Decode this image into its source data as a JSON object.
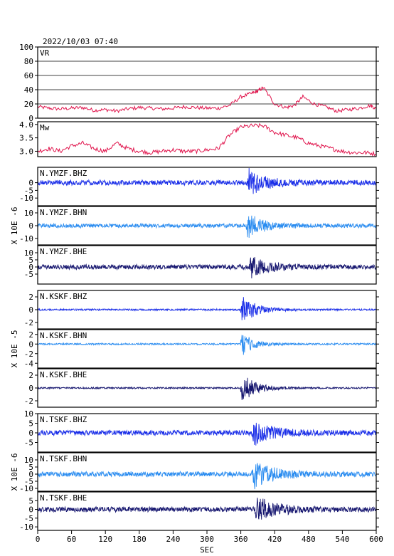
{
  "chart_data": {
    "type": "line",
    "title": "2022/10/03 07:40",
    "xlabel": "SEC",
    "xlim": [
      0,
      600
    ],
    "xticks": [
      "0",
      "60",
      "120",
      "180",
      "240",
      "300",
      "360",
      "420",
      "480",
      "540",
      "600"
    ],
    "colors": {
      "vr": "#e0144c",
      "bhz": "#1a2ee8",
      "bhn": "#2a8cf0",
      "bhe": "#14146e",
      "frame": "#000000",
      "grid": "#000000"
    },
    "panels": [
      {
        "label": "VR",
        "ylim": [
          0,
          100
        ],
        "yticks": [
          "0",
          "20",
          "40",
          "60",
          "80",
          "100"
        ],
        "grid": true,
        "series": {
          "x": [
            0,
            20,
            40,
            60,
            80,
            100,
            120,
            140,
            160,
            180,
            200,
            220,
            240,
            260,
            280,
            300,
            320,
            340,
            360,
            380,
            390,
            400,
            420,
            440,
            455,
            470,
            490,
            510,
            530,
            550,
            570,
            590,
            600
          ],
          "y": [
            16,
            14,
            13,
            14,
            15,
            11,
            12,
            10,
            13,
            15,
            14,
            13,
            14,
            16,
            15,
            14,
            14,
            18,
            30,
            35,
            38,
            43,
            20,
            15,
            18,
            30,
            20,
            16,
            10,
            12,
            14,
            18,
            13
          ]
        }
      },
      {
        "label": "Mw",
        "ylim": [
          2.8,
          4.1
        ],
        "yticks": [
          "3.0",
          "3.5",
          "4.0"
        ],
        "grid": false,
        "series": {
          "x": [
            0,
            20,
            40,
            60,
            80,
            100,
            120,
            140,
            160,
            180,
            200,
            220,
            240,
            260,
            280,
            300,
            320,
            340,
            360,
            380,
            400,
            420,
            440,
            460,
            480,
            500,
            520,
            540,
            560,
            580,
            600
          ],
          "y": [
            3.0,
            3.1,
            3.0,
            3.2,
            3.3,
            3.1,
            3.0,
            3.3,
            3.1,
            3.0,
            2.95,
            3.0,
            3.05,
            3.0,
            3.0,
            3.05,
            3.1,
            3.6,
            3.9,
            3.95,
            3.95,
            3.7,
            3.6,
            3.5,
            3.3,
            3.2,
            3.1,
            3.0,
            2.95,
            2.95,
            2.9
          ]
        }
      },
      {
        "label": "N.YMZF.BHZ",
        "ylim": [
          -15,
          10
        ],
        "yticks": [
          "-10",
          "-5",
          "0"
        ],
        "color": "bhz",
        "onset": 372,
        "duration": 90,
        "peak": 0.92,
        "noise": 0.15
      },
      {
        "label": "N.YMZF.BHN",
        "ylim": [
          -15,
          15
        ],
        "yticks": [
          "-10",
          "0",
          "10"
        ],
        "color": "bhn",
        "onset": 370,
        "duration": 80,
        "peak": 0.85,
        "noise": 0.12
      },
      {
        "label": "N.YMZF.BHE",
        "ylim": [
          -12,
          15
        ],
        "yticks": [
          "-5",
          "0",
          "5",
          "10"
        ],
        "color": "bhe",
        "onset": 375,
        "duration": 80,
        "peak": 0.95,
        "noise": 0.14
      },
      {
        "label": "N.KSKF.BHZ",
        "ylim": [
          -3,
          3
        ],
        "yticks": [
          "-2",
          "0",
          "2"
        ],
        "color": "bhz",
        "onset": 360,
        "duration": 70,
        "peak": 0.95,
        "noise": 0.05
      },
      {
        "label": "N.KSKF.BHN",
        "ylim": [
          -5,
          3
        ],
        "yticks": [
          "-4",
          "-2",
          "0",
          "2"
        ],
        "color": "bhn",
        "onset": 360,
        "duration": 60,
        "peak": 0.85,
        "noise": 0.05
      },
      {
        "label": "N.KSKF.BHE",
        "ylim": [
          -3,
          3
        ],
        "yticks": [
          "-2",
          "0",
          "2"
        ],
        "color": "bhe",
        "onset": 360,
        "duration": 70,
        "peak": 0.95,
        "noise": 0.05
      },
      {
        "label": "N.TSKF.BHZ",
        "ylim": [
          -10,
          10
        ],
        "yticks": [
          "-5",
          "0",
          "5",
          "10"
        ],
        "color": "bhz",
        "onset": 380,
        "duration": 100,
        "peak": 0.9,
        "noise": 0.15
      },
      {
        "label": "N.TSKF.BHN",
        "ylim": [
          -12,
          15
        ],
        "yticks": [
          "-10",
          "-5",
          "0",
          "5",
          "10"
        ],
        "color": "bhn",
        "onset": 380,
        "duration": 100,
        "peak": 0.95,
        "noise": 0.15
      },
      {
        "label": "N.TSKF.BHE",
        "ylim": [
          -12,
          10
        ],
        "yticks": [
          "-10",
          "-5",
          "0",
          "5"
        ],
        "color": "bhe",
        "onset": 385,
        "duration": 100,
        "peak": 0.95,
        "noise": 0.15
      }
    ],
    "unit_labels": [
      "X 10E -6",
      "X 10E -5",
      "X 10E -6"
    ]
  }
}
